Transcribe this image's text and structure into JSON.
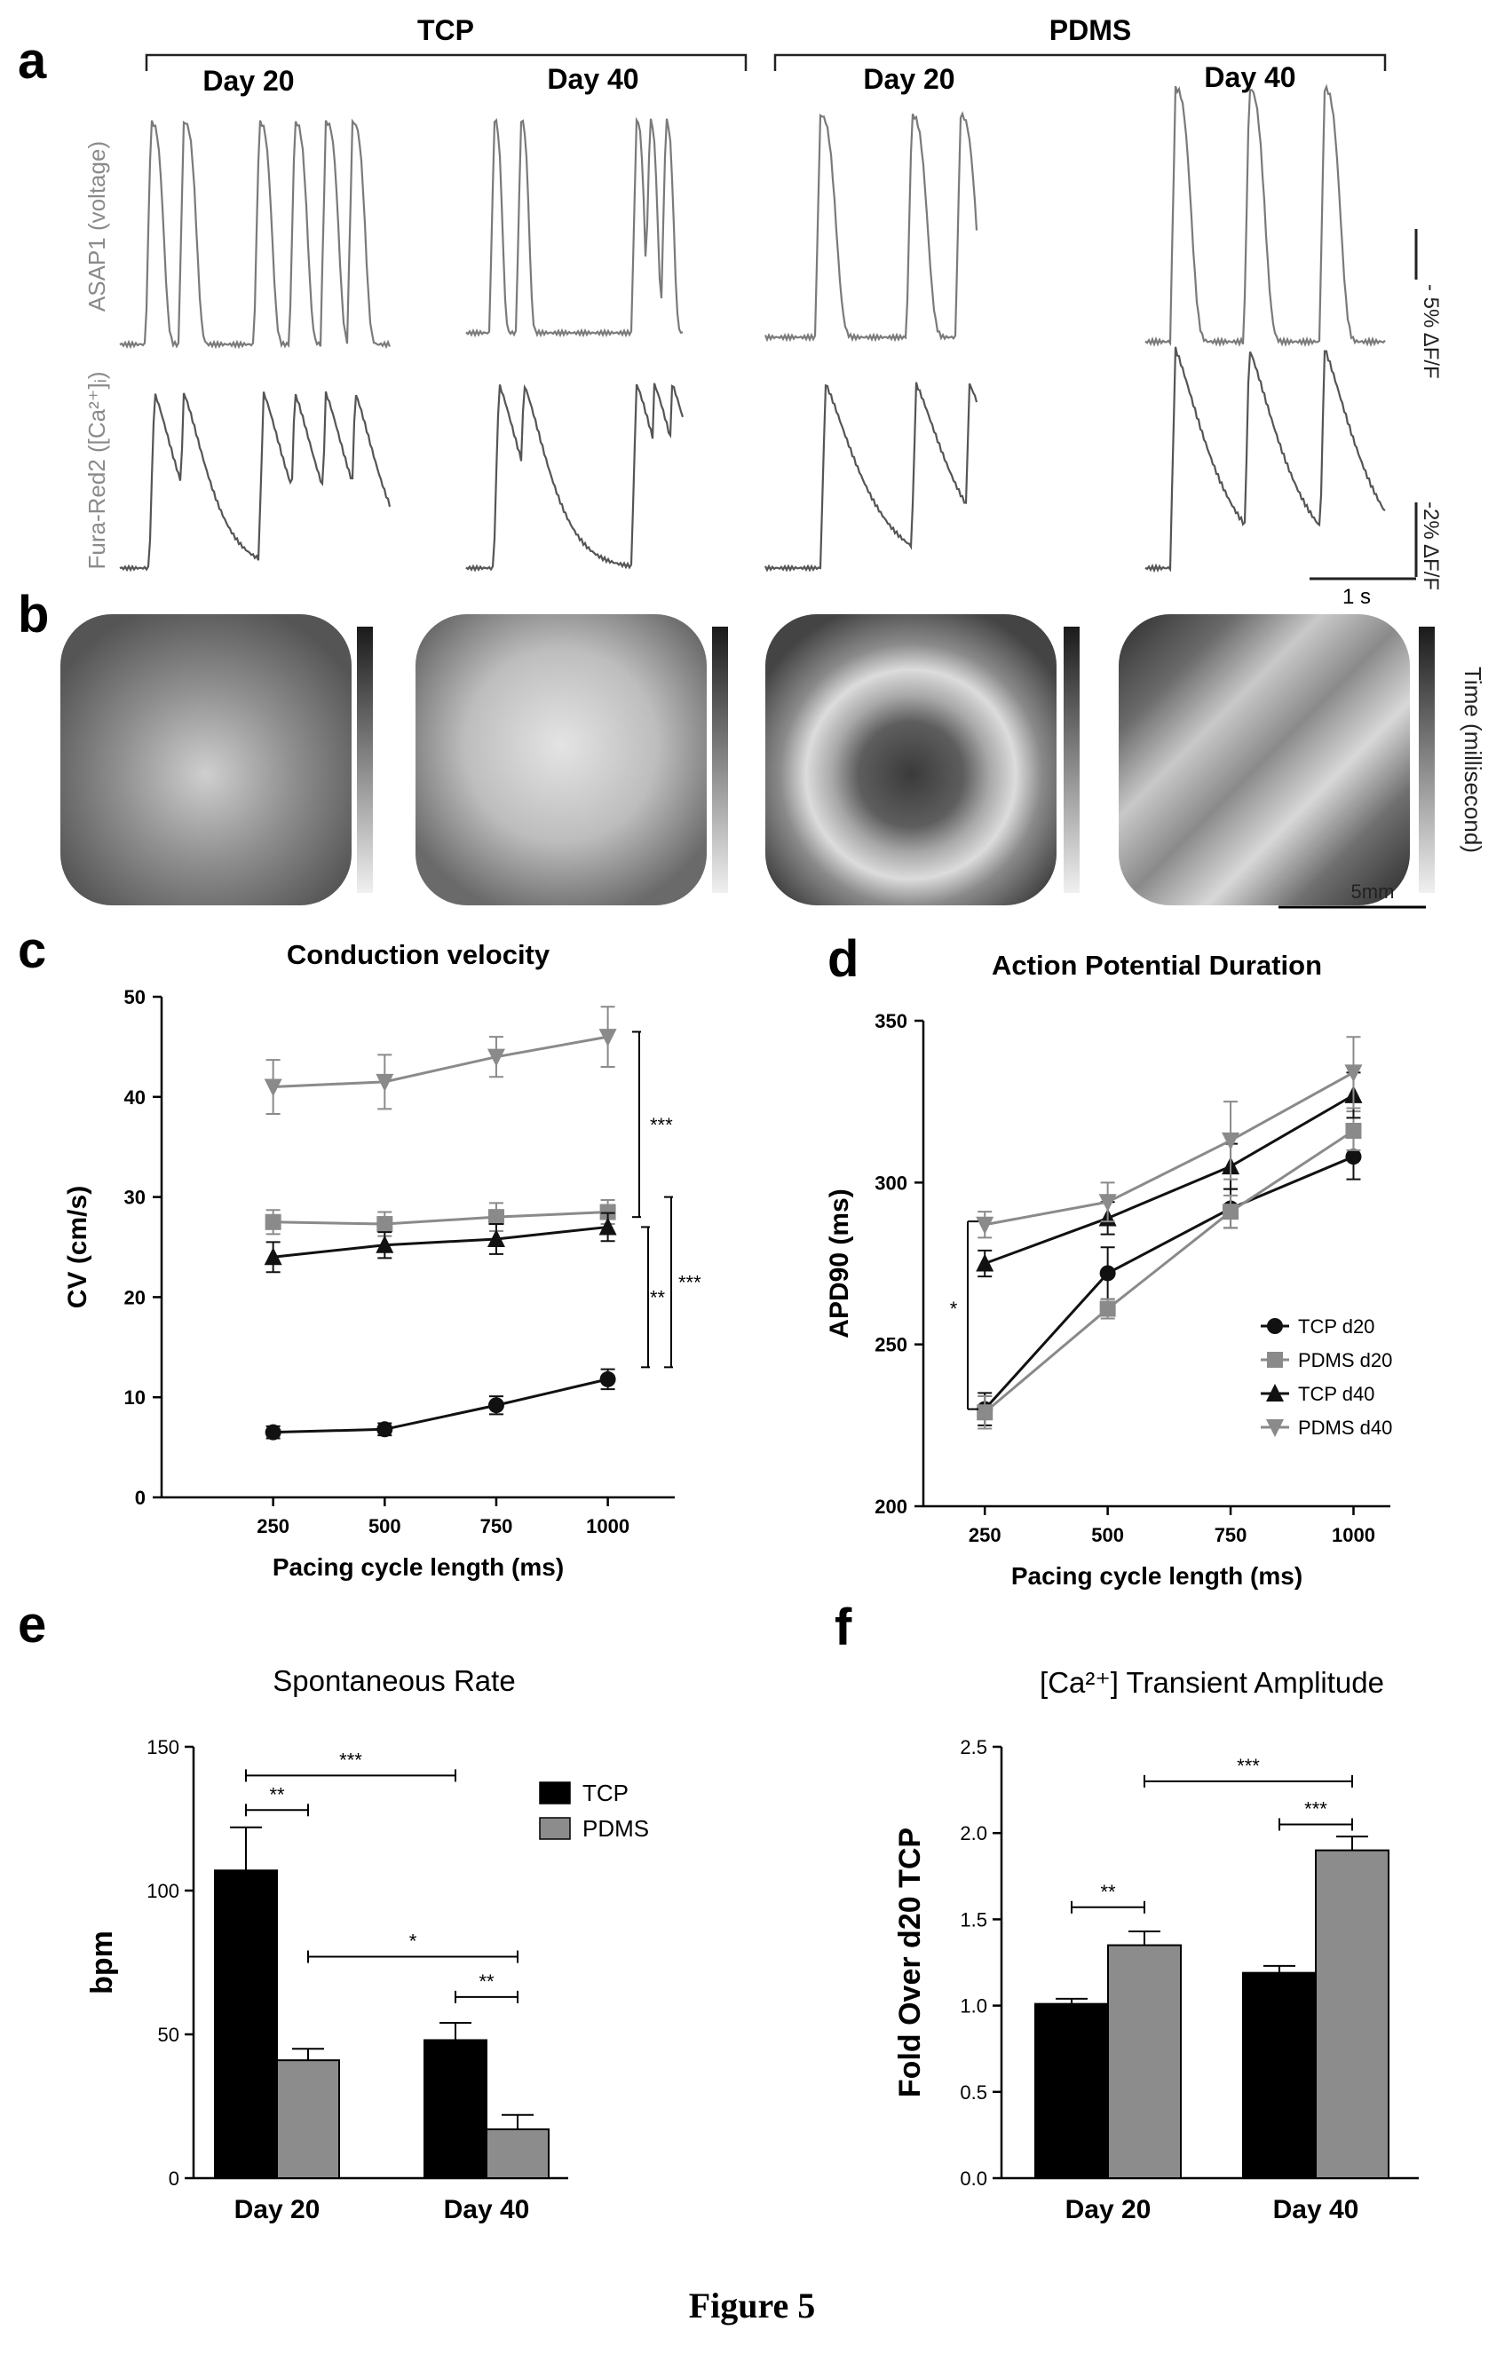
{
  "panel_letters": {
    "a": "a",
    "b": "b",
    "c": "c",
    "d": "d",
    "e": "e",
    "f": "f"
  },
  "figure_caption": "Figure 5",
  "panel_a": {
    "group_labels": [
      "TCP",
      "PDMS"
    ],
    "day_labels": [
      "Day 20",
      "Day 40",
      "Day 20",
      "Day 40"
    ],
    "row_labels": [
      "ASAP1 (voltage)",
      "Fura-Red2 ([Ca²⁺]ᵢ)"
    ],
    "scale_voltage": "- 5% ΔF/F",
    "scale_calcium": "-2% ΔF/F",
    "time_scale": "1 s"
  },
  "panel_b": {
    "colorbar_label": "Time (millisecond)",
    "scale_label": "5mm"
  },
  "chart_data": [
    {
      "panel": "c",
      "type": "line",
      "title": "Conduction velocity",
      "xlabel": "Pacing cycle length (ms)",
      "ylabel": "CV (cm/s)",
      "x": [
        250,
        500,
        750,
        1000
      ],
      "xlim": [
        0,
        1150
      ],
      "ylim": [
        0,
        50
      ],
      "yticks": [
        0,
        10,
        20,
        30,
        40,
        50
      ],
      "series": [
        {
          "marker": "circle",
          "color": "#111111",
          "values": [
            6.5,
            6.8,
            9.2,
            11.8
          ],
          "errors": [
            0.6,
            0.6,
            0.9,
            1.0
          ]
        },
        {
          "marker": "square",
          "color": "#8a8a8a",
          "values": [
            27.5,
            27.3,
            28.0,
            28.5
          ],
          "errors": [
            1.2,
            1.2,
            1.4,
            1.2
          ]
        },
        {
          "marker": "triangle-up",
          "color": "#111111",
          "values": [
            24.0,
            25.2,
            25.8,
            27.0
          ],
          "errors": [
            1.5,
            1.3,
            1.5,
            1.4
          ]
        },
        {
          "marker": "triangle-down",
          "color": "#8a8a8a",
          "values": [
            41.0,
            41.5,
            44.0,
            46.0
          ],
          "errors": [
            2.7,
            2.7,
            2.0,
            3.0
          ]
        }
      ],
      "significance": [
        {
          "label": "***",
          "from": 28,
          "to": 46.5
        },
        {
          "label": "**",
          "from": 13,
          "to": 27
        },
        {
          "label": "***",
          "from": 13,
          "to": 30
        }
      ]
    },
    {
      "panel": "d",
      "type": "line",
      "title": "Action Potential Duration",
      "xlabel": "Pacing cycle length (ms)",
      "ylabel": "APD90 (ms)",
      "x": [
        250,
        500,
        750,
        1000
      ],
      "xlim": [
        125,
        1075
      ],
      "ylim": [
        200,
        350
      ],
      "yticks": [
        200,
        250,
        300,
        350
      ],
      "legend_position": "lower-right",
      "series": [
        {
          "name": "TCP d20",
          "marker": "circle",
          "color": "#111111",
          "values": [
            230,
            272,
            292,
            308
          ],
          "errors": [
            5,
            8,
            6,
            7
          ]
        },
        {
          "name": "PDMS d20",
          "marker": "square",
          "color": "#8a8a8a",
          "values": [
            229,
            261,
            291,
            316
          ],
          "errors": [
            5,
            3,
            5,
            6
          ]
        },
        {
          "name": "TCP d40",
          "marker": "triangle-up",
          "color": "#111111",
          "values": [
            275,
            289,
            305,
            327
          ],
          "errors": [
            4,
            5,
            7,
            7
          ]
        },
        {
          "name": "PDMS d40",
          "marker": "triangle-down",
          "color": "#8a8a8a",
          "values": [
            287,
            294,
            313,
            334
          ],
          "errors": [
            4,
            6,
            12,
            11
          ]
        }
      ],
      "significance": [
        {
          "label": "*",
          "from": 230,
          "to": 288
        }
      ]
    },
    {
      "panel": "e",
      "type": "bar",
      "title": "Spontaneous Rate",
      "xlabel": "",
      "ylabel": "bpm",
      "categories": [
        "Day 20",
        "Day 40"
      ],
      "ylim": [
        0,
        150
      ],
      "yticks": [
        0,
        50,
        100,
        150
      ],
      "legend_position": "top-right",
      "series": [
        {
          "name": "TCP",
          "color": "#000000",
          "values": [
            107,
            48
          ],
          "errors": [
            15,
            6
          ]
        },
        {
          "name": "PDMS",
          "color": "#8c8c8c",
          "values": [
            41,
            17
          ],
          "errors": [
            4,
            5
          ]
        }
      ],
      "significance": [
        {
          "label": "***",
          "between": [
            "Day 20 TCP",
            "Day 40 TCP"
          ],
          "level": 140
        },
        {
          "label": "**",
          "between": [
            "Day 20 TCP",
            "Day 20 PDMS"
          ],
          "level": 128
        },
        {
          "label": "*",
          "between": [
            "Day 20 PDMS",
            "Day 40 PDMS"
          ],
          "level": 77
        },
        {
          "label": "**",
          "between": [
            "Day 40 TCP",
            "Day 40 PDMS"
          ],
          "level": 63
        }
      ]
    },
    {
      "panel": "f",
      "type": "bar",
      "title": "[Ca²⁺] Transient Amplitude",
      "xlabel": "",
      "ylabel": "Fold Over d20 TCP",
      "categories": [
        "Day 20",
        "Day 40"
      ],
      "ylim": [
        0,
        2.5
      ],
      "yticks": [
        "0.0",
        "0.5",
        "1.0",
        "1.5",
        "2.0",
        "2.5"
      ],
      "series": [
        {
          "name": "TCP",
          "color": "#000000",
          "values": [
            1.01,
            1.19
          ],
          "errors": [
            0.03,
            0.04
          ]
        },
        {
          "name": "PDMS",
          "color": "#8c8c8c",
          "values": [
            1.35,
            1.9
          ],
          "errors": [
            0.08,
            0.08
          ]
        }
      ],
      "significance": [
        {
          "label": "**",
          "between": [
            "Day 20 TCP",
            "Day 20 PDMS"
          ],
          "level": 1.57
        },
        {
          "label": "***",
          "between": [
            "Day 20 PDMS",
            "Day 40 PDMS"
          ],
          "level": 2.3
        },
        {
          "label": "***",
          "between": [
            "Day 40 TCP",
            "Day 40 PDMS"
          ],
          "level": 2.05
        }
      ]
    }
  ]
}
